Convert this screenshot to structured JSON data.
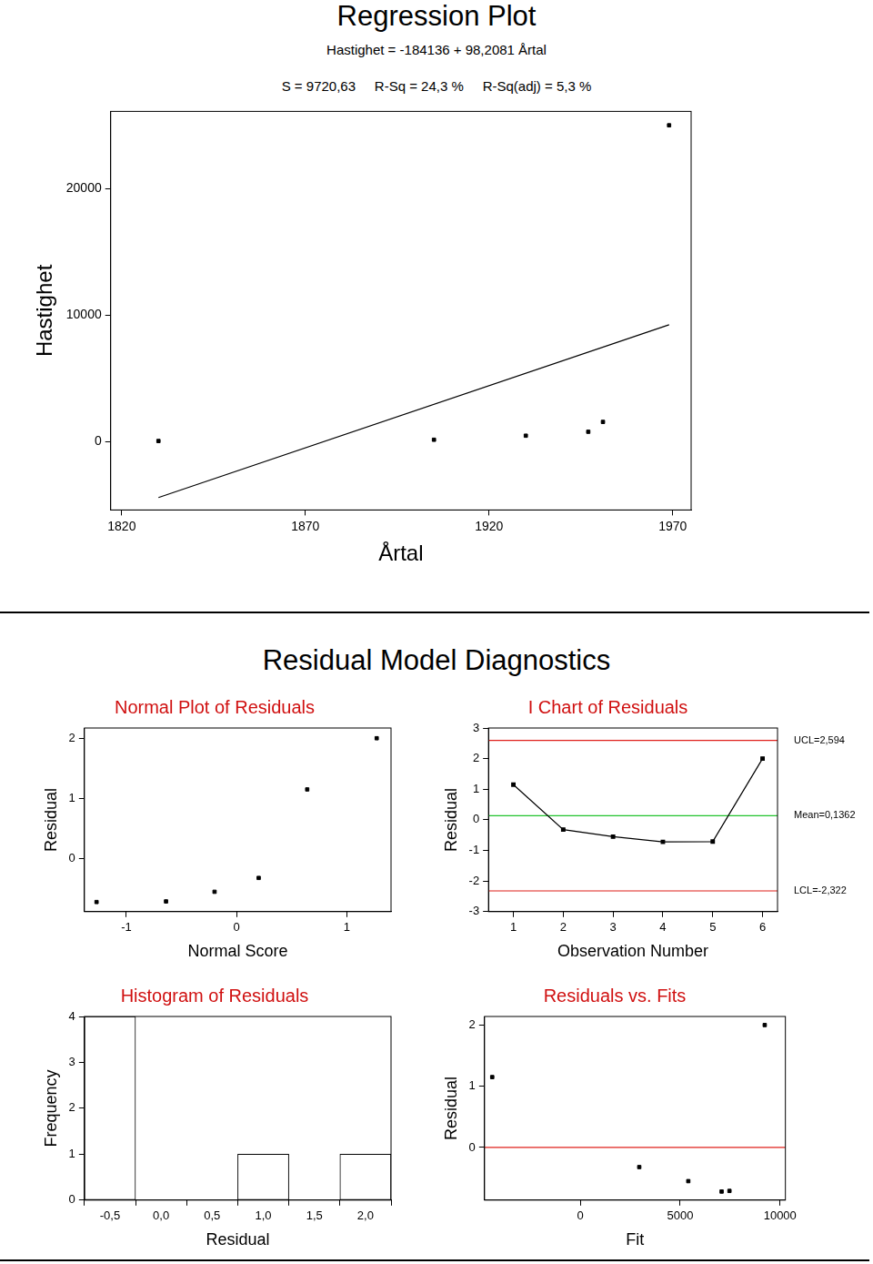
{
  "section_title": "Residual Model Diagnostics",
  "chart_data": [
    {
      "type": "scatter",
      "title": "Regression Plot",
      "subtitle": [
        "Hastighet = -184136 + 98,2081 Årtal",
        "S = 9720,63     R-Sq = 24,3 %     R-Sq(adj) = 5,3 %"
      ],
      "x_label": "Årtal",
      "y_label": "Hastighet",
      "xlim": [
        1817,
        1975
      ],
      "xticks": [
        1820,
        1870,
        1920,
        1970
      ],
      "ylim": [
        -5400,
        26100
      ],
      "yticks": [
        0,
        10000,
        20000
      ],
      "grid": false,
      "series": [
        {
          "type": "scatter",
          "x": [
            1830,
            1905,
            1930,
            1947,
            1951,
            1969
          ],
          "values": [
            50,
            150,
            470,
            780,
            1560,
            25000
          ],
          "color": "#000000",
          "marker": "square"
        },
        {
          "type": "line",
          "x": [
            1830,
            1969
          ],
          "values": [
            -4415,
            9235
          ],
          "color": "#000000"
        }
      ]
    },
    {
      "type": "scatter",
      "title": "Normal Plot of Residuals",
      "x_label": "Normal Score",
      "y_label": "Residual",
      "xlim": [
        -1.38,
        1.4
      ],
      "xticks": [
        -1,
        0,
        1
      ],
      "ylim": [
        -0.88,
        2.17
      ],
      "yticks": [
        0,
        1,
        2
      ],
      "grid": false,
      "series": [
        {
          "type": "scatter",
          "x": [
            -1.27,
            -0.64,
            -0.2,
            0.2,
            0.64,
            1.27
          ],
          "values": [
            -0.72,
            -0.71,
            -0.55,
            -0.32,
            1.15,
            2.0
          ],
          "color": "#000000",
          "marker": "square"
        }
      ]
    },
    {
      "type": "line",
      "title": "I Chart of Residuals",
      "x_label": "Observation Number",
      "y_label": "Residual",
      "xlim": [
        0.5,
        6.3
      ],
      "xticks": [
        1,
        2,
        3,
        4,
        5,
        6
      ],
      "ylim": [
        -3,
        3
      ],
      "yticks": [
        -3,
        -2,
        -1,
        0,
        1,
        2,
        3
      ],
      "grid": false,
      "series": [
        {
          "type": "line",
          "x": [
            1,
            2,
            3,
            4,
            5,
            6
          ],
          "values": [
            1.15,
            -0.32,
            -0.55,
            -0.72,
            -0.71,
            2.0
          ],
          "color": "#000000",
          "marker": "square"
        }
      ],
      "reference_lines": [
        {
          "value": 2.594,
          "label": "UCL=2,594",
          "color": "#e0201b"
        },
        {
          "value": 0.1362,
          "label": "Mean=0,1362",
          "color": "#22c32e"
        },
        {
          "value": -2.322,
          "label": "LCL=-2,322",
          "color": "#e0201b"
        }
      ]
    },
    {
      "type": "histogram",
      "title": "Histogram of Residuals",
      "x_label": "Residual",
      "y_label": "Frequency",
      "bins": [
        -0.75,
        -0.25,
        0.25,
        0.75,
        1.25,
        1.75,
        2.25
      ],
      "counts": [
        4,
        0,
        0,
        1,
        0,
        1
      ],
      "color": "#ffffff",
      "xlim": [
        -0.75,
        2.25
      ],
      "xticks": [
        {
          "value": -0.5,
          "label": "-0,5"
        },
        {
          "value": 0,
          "label": "0,0"
        },
        {
          "value": 0.5,
          "label": "0,5"
        },
        {
          "value": 1,
          "label": "1,0"
        },
        {
          "value": 1.5,
          "label": "1,5"
        },
        {
          "value": 2,
          "label": "2,0"
        }
      ],
      "ylim": [
        0,
        4
      ],
      "yticks": [
        0,
        1,
        2,
        3,
        4
      ],
      "grid": false
    },
    {
      "type": "scatter",
      "title": "Residuals vs. Fits",
      "x_label": "Fit",
      "y_label": "Residual",
      "xlim": [
        -4800,
        10270
      ],
      "xticks": [
        0,
        5000,
        10000
      ],
      "ylim": [
        -0.86,
        2.14
      ],
      "yticks": [
        0,
        1,
        2
      ],
      "grid": false,
      "series": [
        {
          "type": "scatter",
          "x": [
            -4415,
            2950,
            5406,
            7075,
            7468,
            9235
          ],
          "values": [
            1.15,
            -0.32,
            -0.55,
            -0.72,
            -0.71,
            2.0
          ],
          "color": "#000000",
          "marker": "square"
        }
      ],
      "reference_lines": [
        {
          "value": 0,
          "color": "#e0201b"
        }
      ]
    }
  ]
}
